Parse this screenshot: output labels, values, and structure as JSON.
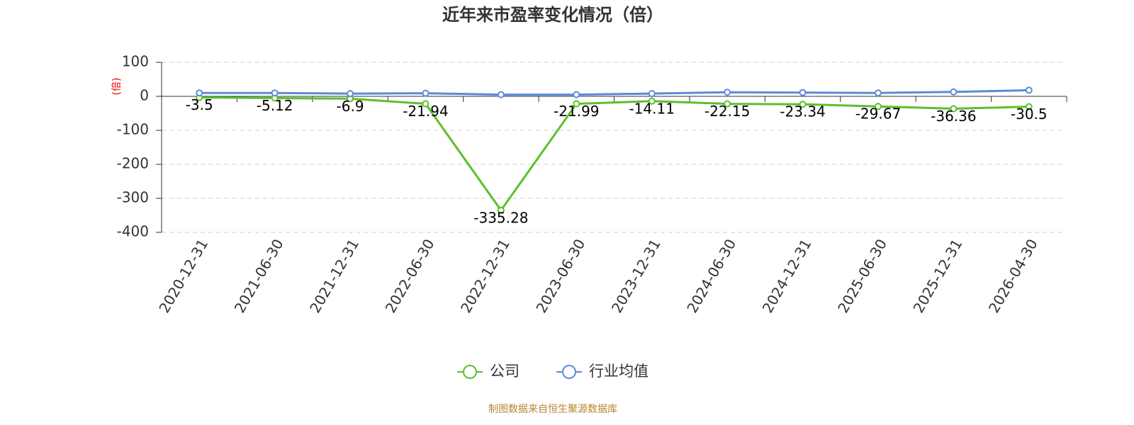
{
  "chart_data": {
    "type": "line",
    "title": "近年来市盈率变化情况（倍）",
    "y_label": "(倍)",
    "categories": [
      "2020-12-31",
      "2021-06-30",
      "2021-12-31",
      "2022-06-30",
      "2022-12-31",
      "2023-06-30",
      "2023-12-31",
      "2024-06-30",
      "2024-12-31",
      "2025-06-30",
      "2025-12-31",
      "2026-04-30"
    ],
    "series": [
      {
        "name": "公司",
        "color": "#5cbf2a",
        "values": [
          -3.5,
          -5.12,
          -6.9,
          -21.94,
          -335.28,
          -21.99,
          -14.11,
          -22.15,
          -23.34,
          -29.67,
          -36.36,
          -30.5
        ]
      },
      {
        "name": "行业均值",
        "color": "#5b8bd9",
        "values": [
          10,
          10,
          8,
          9,
          5,
          5,
          8,
          12,
          11,
          10,
          13,
          18
        ]
      }
    ],
    "ylim": [
      -400,
      100
    ],
    "yticks": [
      -400,
      -300,
      -200,
      -100,
      0,
      100
    ],
    "grid": true,
    "source": "制图数据来自恒生聚源数据库"
  }
}
